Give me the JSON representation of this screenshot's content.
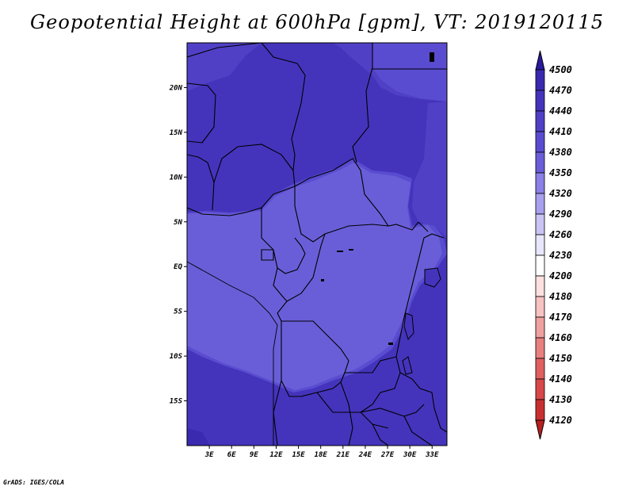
{
  "title": "Geopotential Height at 600hPa [gpm], VT: 2019120115",
  "credit": "GrADS: IGES/COLA",
  "map": {
    "lat_labels": [
      "20N",
      "15N",
      "10N",
      "5N",
      "EQ",
      "5S",
      "10S",
      "15S"
    ],
    "lat_values": [
      20,
      15,
      10,
      5,
      0,
      -5,
      -10,
      -15
    ],
    "lon_labels": [
      "3E",
      "6E",
      "9E",
      "12E",
      "15E",
      "18E",
      "21E",
      "24E",
      "27E",
      "30E",
      "33E"
    ],
    "lon_values": [
      3,
      6,
      9,
      12,
      15,
      18,
      21,
      24,
      27,
      30,
      33
    ],
    "lon_range": [
      0,
      35
    ],
    "lat_range": [
      -20,
      25
    ]
  },
  "colorbar": {
    "labels": [
      "4500",
      "4470",
      "4440",
      "4410",
      "4380",
      "4350",
      "4320",
      "4290",
      "4260",
      "4230",
      "4200",
      "4180",
      "4170",
      "4160",
      "4150",
      "4140",
      "4130",
      "4120"
    ],
    "colors": [
      "#2a1a9e",
      "#3a2ab0",
      "#4434bc",
      "#5040c6",
      "#5a4cd0",
      "#6a5ed8",
      "#8a80e6",
      "#a8a0ee",
      "#c8c4f4",
      "#e8e6fa",
      "#ffffff",
      "#fde0e0",
      "#f8c2c2",
      "#f0a0a0",
      "#e88080",
      "#e06060",
      "#d84848",
      "#c83030",
      "#b82020"
    ],
    "top_color": "#2a1a9e",
    "bottom_color": "#b82020"
  },
  "field_colors": {
    "c4470": "#3a2ab0",
    "c4440": "#4434bc",
    "c4410": "#5040c6",
    "c4380": "#5a4cd0",
    "c4350": "#6a5ed8",
    "c4500": "#2a1a9e"
  }
}
